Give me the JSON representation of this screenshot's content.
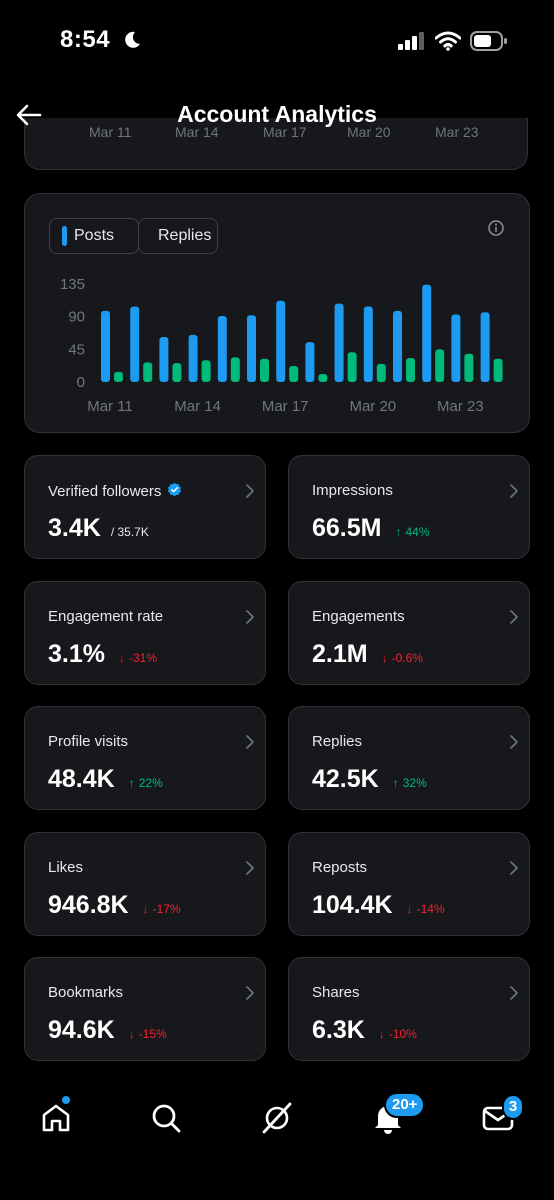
{
  "status_bar": {
    "time": "8:54",
    "icons": [
      "moon-icon",
      "cellular-signal-icon",
      "wifi-icon",
      "battery-icon"
    ]
  },
  "header": {
    "title": "Account Analytics",
    "back_icon": "arrow-left-icon"
  },
  "partial_chart": {
    "labels": [
      "Mar 11",
      "Mar 14",
      "Mar 17",
      "Mar 20",
      "Mar 23"
    ]
  },
  "chart": {
    "legend": [
      {
        "label": "Posts",
        "color": "#1d9bf0"
      },
      {
        "label": "Replies",
        "color": "#00ba7c"
      }
    ],
    "info_icon": "info-icon"
  },
  "chart_data": {
    "type": "bar",
    "categories": [
      "Mar 11",
      "Mar 12",
      "Mar 13",
      "Mar 14",
      "Mar 15",
      "Mar 16",
      "Mar 17",
      "Mar 18",
      "Mar 19",
      "Mar 20",
      "Mar 21",
      "Mar 22",
      "Mar 23",
      "Mar 24"
    ],
    "series": [
      {
        "name": "Posts",
        "color": "#1d9bf0",
        "values": [
          98,
          104,
          62,
          65,
          91,
          92,
          112,
          55,
          108,
          104,
          98,
          134,
          93,
          96
        ]
      },
      {
        "name": "Replies",
        "color": "#00ba7c",
        "values": [
          14,
          27,
          26,
          30,
          34,
          32,
          22,
          11,
          41,
          25,
          33,
          45,
          39,
          32
        ]
      }
    ],
    "x_tick_labels": [
      "Mar 11",
      "Mar 14",
      "Mar 17",
      "Mar 20",
      "Mar 23"
    ],
    "y_ticks": [
      "0",
      "45",
      "90",
      "135"
    ],
    "ylim": [
      0,
      135
    ],
    "grid": false,
    "legend": "top-left"
  },
  "metrics": [
    {
      "label": "Verified followers",
      "value": "3.4K",
      "sub": "/ 35.7K",
      "delta": "",
      "direction": "",
      "badge": "verified-badge-icon"
    },
    {
      "label": "Impressions",
      "value": "66.5M",
      "sub": "",
      "delta": "44%",
      "direction": "up"
    },
    {
      "label": "Engagement rate",
      "value": "3.1%",
      "sub": "",
      "delta": "-31%",
      "direction": "down"
    },
    {
      "label": "Engagements",
      "value": "2.1M",
      "sub": "",
      "delta": "-0.6%",
      "direction": "down"
    },
    {
      "label": "Profile visits",
      "value": "48.4K",
      "sub": "",
      "delta": "22%",
      "direction": "up"
    },
    {
      "label": "Replies",
      "value": "42.5K",
      "sub": "",
      "delta": "32%",
      "direction": "up"
    },
    {
      "label": "Likes",
      "value": "946.8K",
      "sub": "",
      "delta": "-17%",
      "direction": "down"
    },
    {
      "label": "Reposts",
      "value": "104.4K",
      "sub": "",
      "delta": "-14%",
      "direction": "down"
    },
    {
      "label": "Bookmarks",
      "value": "94.6K",
      "sub": "",
      "delta": "-15%",
      "direction": "down"
    },
    {
      "label": "Shares",
      "value": "6.3K",
      "sub": "",
      "delta": "-10%",
      "direction": "down"
    }
  ],
  "nav": {
    "items": [
      "home-icon",
      "search-icon",
      "grok-icon",
      "notifications-icon",
      "messages-icon"
    ],
    "notifications_badge": "20+",
    "messages_badge": "3",
    "accent": "#1d9bf0"
  }
}
